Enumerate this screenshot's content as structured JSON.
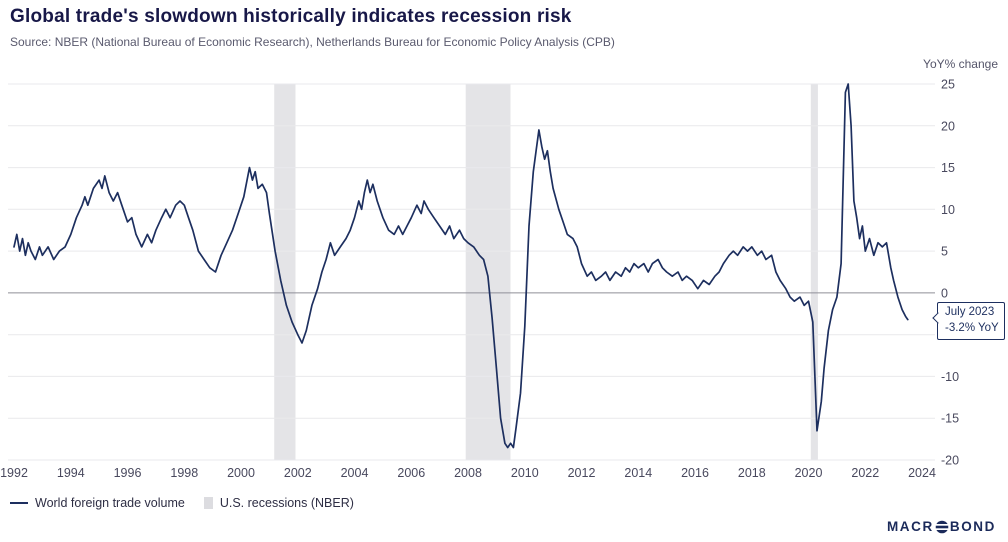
{
  "header": {
    "title": "Global trade's slowdown historically indicates recession risk",
    "source": "Source: NBER (National Bureau of Economic Research), Netherlands Bureau for Economic Policy Analysis (CPB)"
  },
  "legend": {
    "series_label": "World foreign trade volume",
    "band_label": "U.S. recessions (NBER)"
  },
  "branding": {
    "name": "MACROBOND",
    "part1": "MACR",
    "part2": "BOND"
  },
  "colors": {
    "line": "#1d2f5f",
    "band": "#e4e4e7",
    "grid": "#e9e9ec",
    "zero_line": "#8f8f98",
    "title_text": "#181848",
    "tick_text": "#49495e"
  },
  "chart_data": {
    "type": "line",
    "title": "Global trade's slowdown historically indicates recession risk",
    "xlabel": "",
    "ylabel": "YoY% change",
    "xlim": [
      1992,
      2024
    ],
    "ylim": [
      -20,
      25
    ],
    "grid": true,
    "legend_position": "bottom-left",
    "x_ticks": [
      1992,
      1994,
      1996,
      1998,
      2000,
      2002,
      2004,
      2006,
      2008,
      2010,
      2012,
      2014,
      2016,
      2018,
      2020,
      2022,
      2024
    ],
    "y_ticks": [
      -20,
      -15,
      -10,
      -5,
      0,
      5,
      10,
      15,
      20,
      25
    ],
    "annotation": {
      "line1": "July 2023",
      "line2": "-3.2% YoY",
      "x": 2023.5,
      "y": -3.2
    },
    "recession_bands": {
      "name": "U.S. recessions (NBER)",
      "color": "#e4e4e7",
      "ranges": [
        [
          2001.17,
          2001.92
        ],
        [
          2007.92,
          2009.5
        ],
        [
          2020.08,
          2020.33
        ]
      ]
    },
    "series": [
      {
        "name": "World foreign trade volume",
        "color": "#1d2f5f",
        "points": [
          [
            1992.0,
            5.5
          ],
          [
            1992.1,
            7.0
          ],
          [
            1992.2,
            5.0
          ],
          [
            1992.3,
            6.5
          ],
          [
            1992.4,
            4.5
          ],
          [
            1992.5,
            6.0
          ],
          [
            1992.6,
            5.0
          ],
          [
            1992.75,
            4.0
          ],
          [
            1992.9,
            5.5
          ],
          [
            1993.0,
            4.5
          ],
          [
            1993.2,
            5.5
          ],
          [
            1993.4,
            4.0
          ],
          [
            1993.6,
            5.0
          ],
          [
            1993.8,
            5.5
          ],
          [
            1994.0,
            7.0
          ],
          [
            1994.2,
            9.0
          ],
          [
            1994.4,
            10.5
          ],
          [
            1994.5,
            11.5
          ],
          [
            1994.6,
            10.5
          ],
          [
            1994.8,
            12.5
          ],
          [
            1995.0,
            13.5
          ],
          [
            1995.1,
            12.5
          ],
          [
            1995.2,
            14.0
          ],
          [
            1995.35,
            12.0
          ],
          [
            1995.5,
            11.0
          ],
          [
            1995.65,
            12.0
          ],
          [
            1995.8,
            10.5
          ],
          [
            1996.0,
            8.5
          ],
          [
            1996.15,
            9.0
          ],
          [
            1996.3,
            7.0
          ],
          [
            1996.5,
            5.5
          ],
          [
            1996.7,
            7.0
          ],
          [
            1996.85,
            6.0
          ],
          [
            1997.0,
            7.5
          ],
          [
            1997.2,
            9.0
          ],
          [
            1997.35,
            10.0
          ],
          [
            1997.5,
            9.0
          ],
          [
            1997.7,
            10.5
          ],
          [
            1997.85,
            11.0
          ],
          [
            1998.0,
            10.5
          ],
          [
            1998.15,
            9.0
          ],
          [
            1998.3,
            7.5
          ],
          [
            1998.5,
            5.0
          ],
          [
            1998.7,
            4.0
          ],
          [
            1998.9,
            3.0
          ],
          [
            1999.1,
            2.5
          ],
          [
            1999.3,
            4.5
          ],
          [
            1999.5,
            6.0
          ],
          [
            1999.7,
            7.5
          ],
          [
            1999.9,
            9.5
          ],
          [
            2000.1,
            11.5
          ],
          [
            2000.3,
            15.0
          ],
          [
            2000.4,
            13.5
          ],
          [
            2000.5,
            14.5
          ],
          [
            2000.6,
            12.5
          ],
          [
            2000.75,
            13.0
          ],
          [
            2000.9,
            12.0
          ],
          [
            2001.0,
            9.5
          ],
          [
            2001.2,
            5.0
          ],
          [
            2001.4,
            1.5
          ],
          [
            2001.6,
            -1.5
          ],
          [
            2001.8,
            -3.5
          ],
          [
            2002.0,
            -5.0
          ],
          [
            2002.15,
            -6.0
          ],
          [
            2002.3,
            -4.5
          ],
          [
            2002.5,
            -1.5
          ],
          [
            2002.7,
            0.5
          ],
          [
            2002.85,
            2.5
          ],
          [
            2003.0,
            4.0
          ],
          [
            2003.15,
            6.0
          ],
          [
            2003.3,
            4.5
          ],
          [
            2003.5,
            5.5
          ],
          [
            2003.7,
            6.5
          ],
          [
            2003.85,
            7.5
          ],
          [
            2004.0,
            9.0
          ],
          [
            2004.15,
            11.0
          ],
          [
            2004.25,
            10.0
          ],
          [
            2004.35,
            12.0
          ],
          [
            2004.45,
            13.5
          ],
          [
            2004.55,
            12.0
          ],
          [
            2004.65,
            13.0
          ],
          [
            2004.8,
            11.0
          ],
          [
            2005.0,
            9.0
          ],
          [
            2005.2,
            7.5
          ],
          [
            2005.4,
            7.0
          ],
          [
            2005.55,
            8.0
          ],
          [
            2005.7,
            7.0
          ],
          [
            2005.85,
            8.0
          ],
          [
            2006.0,
            9.0
          ],
          [
            2006.2,
            10.5
          ],
          [
            2006.35,
            9.5
          ],
          [
            2006.45,
            11.0
          ],
          [
            2006.6,
            10.0
          ],
          [
            2006.8,
            9.0
          ],
          [
            2007.0,
            8.0
          ],
          [
            2007.2,
            7.0
          ],
          [
            2007.35,
            8.0
          ],
          [
            2007.5,
            6.5
          ],
          [
            2007.7,
            7.5
          ],
          [
            2007.85,
            6.5
          ],
          [
            2008.0,
            6.0
          ],
          [
            2008.2,
            5.5
          ],
          [
            2008.4,
            4.5
          ],
          [
            2008.55,
            4.0
          ],
          [
            2008.7,
            2.0
          ],
          [
            2008.85,
            -3.0
          ],
          [
            2009.0,
            -9.0
          ],
          [
            2009.15,
            -15.0
          ],
          [
            2009.3,
            -18.0
          ],
          [
            2009.4,
            -18.5
          ],
          [
            2009.5,
            -18.0
          ],
          [
            2009.6,
            -18.5
          ],
          [
            2009.7,
            -16.0
          ],
          [
            2009.85,
            -12.0
          ],
          [
            2010.0,
            -4.0
          ],
          [
            2010.15,
            8.0
          ],
          [
            2010.3,
            14.5
          ],
          [
            2010.4,
            17.0
          ],
          [
            2010.5,
            19.5
          ],
          [
            2010.6,
            17.5
          ],
          [
            2010.7,
            16.0
          ],
          [
            2010.8,
            17.0
          ],
          [
            2010.9,
            14.5
          ],
          [
            2011.0,
            12.5
          ],
          [
            2011.2,
            10.0
          ],
          [
            2011.35,
            8.5
          ],
          [
            2011.5,
            7.0
          ],
          [
            2011.7,
            6.5
          ],
          [
            2011.85,
            5.5
          ],
          [
            2012.0,
            3.5
          ],
          [
            2012.2,
            2.0
          ],
          [
            2012.35,
            2.5
          ],
          [
            2012.5,
            1.5
          ],
          [
            2012.7,
            2.0
          ],
          [
            2012.85,
            2.5
          ],
          [
            2013.0,
            1.5
          ],
          [
            2013.2,
            2.5
          ],
          [
            2013.4,
            2.0
          ],
          [
            2013.55,
            3.0
          ],
          [
            2013.7,
            2.5
          ],
          [
            2013.85,
            3.5
          ],
          [
            2014.0,
            3.0
          ],
          [
            2014.2,
            3.5
          ],
          [
            2014.35,
            2.5
          ],
          [
            2014.5,
            3.5
          ],
          [
            2014.7,
            4.0
          ],
          [
            2014.85,
            3.0
          ],
          [
            2015.0,
            2.5
          ],
          [
            2015.2,
            2.0
          ],
          [
            2015.4,
            2.5
          ],
          [
            2015.55,
            1.5
          ],
          [
            2015.7,
            2.0
          ],
          [
            2015.9,
            1.5
          ],
          [
            2016.1,
            0.5
          ],
          [
            2016.3,
            1.5
          ],
          [
            2016.5,
            1.0
          ],
          [
            2016.7,
            2.0
          ],
          [
            2016.85,
            2.5
          ],
          [
            2017.0,
            3.5
          ],
          [
            2017.2,
            4.5
          ],
          [
            2017.35,
            5.0
          ],
          [
            2017.5,
            4.5
          ],
          [
            2017.7,
            5.5
          ],
          [
            2017.85,
            5.0
          ],
          [
            2018.0,
            5.5
          ],
          [
            2018.2,
            4.5
          ],
          [
            2018.35,
            5.0
          ],
          [
            2018.5,
            4.0
          ],
          [
            2018.7,
            4.5
          ],
          [
            2018.85,
            2.5
          ],
          [
            2019.0,
            1.5
          ],
          [
            2019.2,
            0.5
          ],
          [
            2019.35,
            -0.5
          ],
          [
            2019.5,
            -1.0
          ],
          [
            2019.7,
            -0.5
          ],
          [
            2019.85,
            -1.5
          ],
          [
            2020.0,
            -1.0
          ],
          [
            2020.15,
            -3.5
          ],
          [
            2020.3,
            -16.5
          ],
          [
            2020.45,
            -13.0
          ],
          [
            2020.55,
            -9.0
          ],
          [
            2020.7,
            -4.5
          ],
          [
            2020.85,
            -2.0
          ],
          [
            2021.0,
            -0.5
          ],
          [
            2021.15,
            3.5
          ],
          [
            2021.3,
            24.0
          ],
          [
            2021.4,
            25.0
          ],
          [
            2021.5,
            20.0
          ],
          [
            2021.6,
            11.0
          ],
          [
            2021.7,
            9.0
          ],
          [
            2021.8,
            6.5
          ],
          [
            2021.9,
            8.0
          ],
          [
            2022.0,
            5.0
          ],
          [
            2022.15,
            6.5
          ],
          [
            2022.3,
            4.5
          ],
          [
            2022.45,
            6.0
          ],
          [
            2022.6,
            5.5
          ],
          [
            2022.75,
            6.0
          ],
          [
            2022.9,
            3.0
          ],
          [
            2023.0,
            1.5
          ],
          [
            2023.15,
            -0.5
          ],
          [
            2023.3,
            -2.0
          ],
          [
            2023.42,
            -2.8
          ],
          [
            2023.5,
            -3.2
          ]
        ]
      }
    ]
  }
}
